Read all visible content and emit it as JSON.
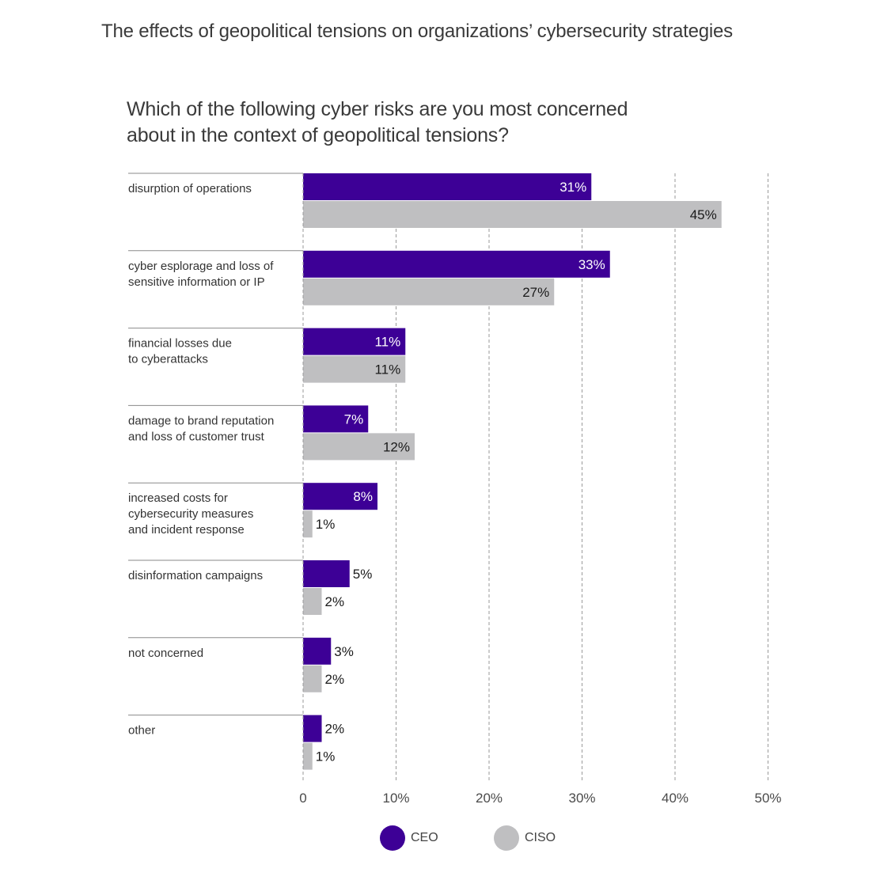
{
  "page": {
    "title": "The effects of geopolitical tensions on organizations’ cybersecurity strategies",
    "question": [
      "Which of the following cyber risks are you most concerned",
      "about in the context of geopolitical tensions?"
    ]
  },
  "colors": {
    "ceo": "#3d0096",
    "ciso": "#bfbfc1"
  },
  "chart_data": {
    "type": "bar",
    "orientation": "horizontal",
    "title": "Which of the following cyber risks are you most concerned about in the context of geopolitical tensions?",
    "categories": [
      [
        "disurption of operations"
      ],
      [
        "cyber esplorage and loss of",
        "sensitive information or IP"
      ],
      [
        "financial losses due",
        "to cyberattacks"
      ],
      [
        "damage to brand reputation",
        "and loss of customer trust"
      ],
      [
        "increased costs for",
        "cybersecurity measures",
        "and incident response"
      ],
      [
        "disinformation campaigns"
      ],
      [
        "not concerned"
      ],
      [
        "other"
      ]
    ],
    "series": [
      {
        "name": "CEO",
        "values": [
          31,
          33,
          11,
          7,
          8,
          5,
          3,
          2
        ],
        "labels": [
          "31%",
          "33%",
          "11%",
          "7%",
          "8%",
          "5%",
          "3%",
          "2%"
        ]
      },
      {
        "name": "CISO",
        "values": [
          45,
          27,
          11,
          12,
          1,
          2,
          2,
          1
        ],
        "labels": [
          "45%",
          "27%",
          "11%",
          "12%",
          "1%",
          "2%",
          "2%",
          "1%"
        ]
      }
    ],
    "xlim": [
      0,
      50
    ],
    "xticks": [
      0,
      10,
      20,
      30,
      40,
      50
    ],
    "xtick_labels": [
      "0",
      "10%",
      "20%",
      "30%",
      "40%",
      "50%"
    ],
    "grid": "vertical dashed",
    "legend": "bottom-center"
  }
}
